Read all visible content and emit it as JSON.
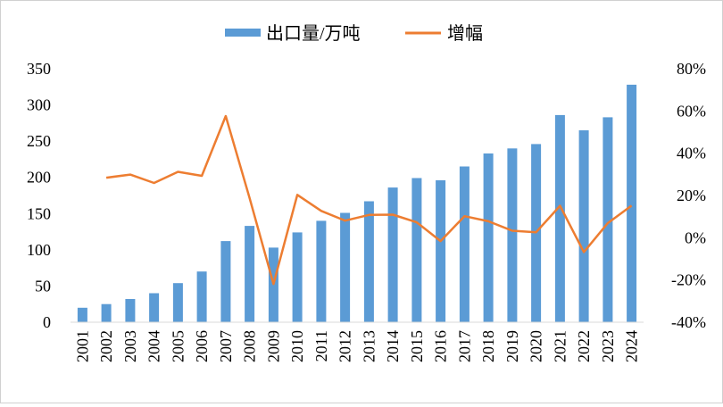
{
  "chart_data": {
    "type": "bar",
    "categories": [
      "2001",
      "2002",
      "2003",
      "2004",
      "2005",
      "2006",
      "2007",
      "2008",
      "2009",
      "2010",
      "2011",
      "2012",
      "2013",
      "2014",
      "2015",
      "2016",
      "2017",
      "2018",
      "2019",
      "2020",
      "2021",
      "2022",
      "2023",
      "2024"
    ],
    "series": [
      {
        "name": "出口量/万吨",
        "type": "bar",
        "axis": "left",
        "color": "#5B9BD5",
        "values": [
          20,
          25,
          32,
          40,
          54,
          70,
          112,
          133,
          103,
          124,
          140,
          151,
          167,
          186,
          199,
          196,
          215,
          233,
          240,
          246,
          286,
          265,
          283,
          328
        ]
      },
      {
        "name": "增幅",
        "type": "line",
        "axis": "right",
        "color": "#ED7D31",
        "values": [
          null,
          28.4,
          29.9,
          25.9,
          31.2,
          29.3,
          57.6,
          18.8,
          -21.9,
          20.3,
          12.7,
          8.1,
          10.8,
          10.9,
          7.3,
          -1.6,
          10.2,
          7.8,
          3.3,
          2.6,
          15.1,
          -6.8,
          6.9,
          15.2
        ]
      }
    ],
    "y_left": {
      "min": 0,
      "max": 350,
      "step": 50,
      "ticks": [
        "0",
        "50",
        "100",
        "150",
        "200",
        "250",
        "300",
        "350"
      ]
    },
    "y_right": {
      "min": -40,
      "max": 80,
      "step": 20,
      "ticks": [
        "-40%",
        "-20%",
        "0%",
        "20%",
        "40%",
        "60%",
        "80%"
      ]
    },
    "legend": {
      "position": "top"
    },
    "grid": false
  }
}
